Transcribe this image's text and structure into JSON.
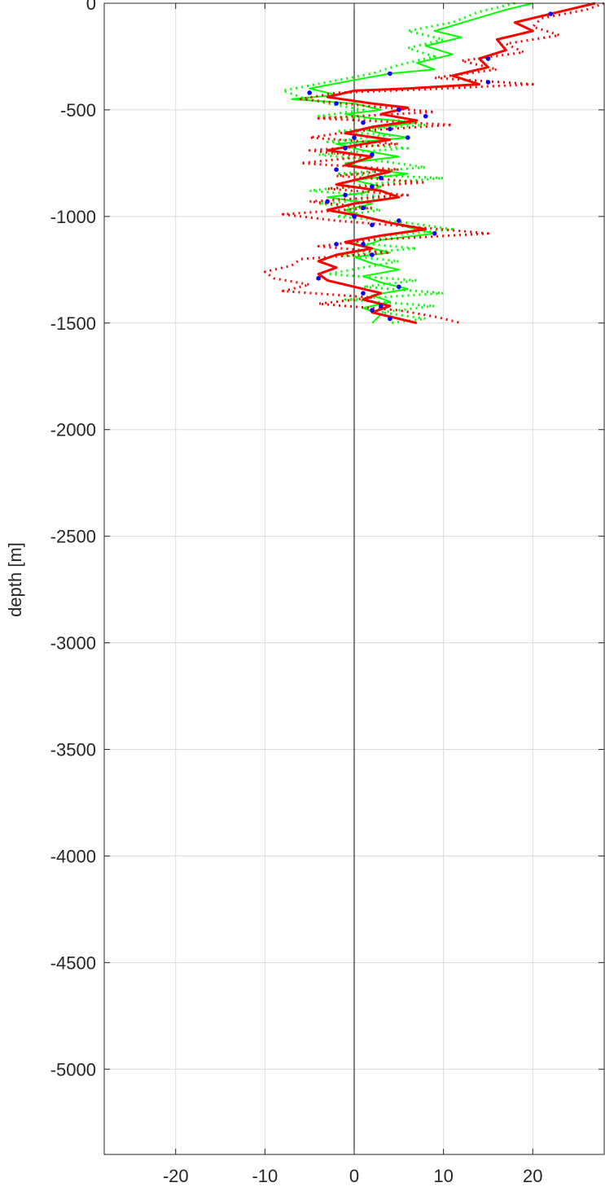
{
  "chart_data": {
    "type": "line",
    "title": "",
    "xlabel": "",
    "ylabel": "depth [m]",
    "xlim": [
      -28,
      28
    ],
    "ylim": [
      -5400,
      0
    ],
    "xticks": [
      -20,
      -10,
      0,
      10,
      20
    ],
    "yticks": [
      0,
      -500,
      -1000,
      -1500,
      -2000,
      -2500,
      -3000,
      -3500,
      -4000,
      -4500,
      -5000
    ],
    "xtick_labels": [
      "-20",
      "-10",
      "0",
      "10",
      "20"
    ],
    "ytick_labels": [
      "0",
      "-500",
      "-1000",
      "-1500",
      "-2000",
      "-2500",
      "-3000",
      "-3500",
      "-4000",
      "-4500",
      "-5000"
    ],
    "grid": true,
    "zero_line_x": 0,
    "legend": "none",
    "colors": {
      "red": "#ff0000",
      "green": "#00ff00",
      "blue": "#0000ff",
      "axis": "#262626",
      "grid": "#dcdcdc",
      "zero": "#000000"
    },
    "series": [
      {
        "color": "#00ff00",
        "style": "solid",
        "points": [
          [
            20,
            0
          ],
          [
            17,
            -30
          ],
          [
            13,
            -80
          ],
          [
            9,
            -130
          ],
          [
            12,
            -160
          ],
          [
            8,
            -200
          ],
          [
            11,
            -240
          ],
          [
            7,
            -280
          ],
          [
            9,
            -310
          ],
          [
            4,
            -330
          ],
          [
            0,
            -360
          ],
          [
            -5,
            -400
          ],
          [
            -2,
            -430
          ],
          [
            -7,
            -450
          ],
          [
            0,
            -470
          ],
          [
            3,
            -500
          ],
          [
            -1,
            -520
          ],
          [
            2,
            -540
          ],
          [
            7,
            -560
          ],
          [
            1,
            -590
          ],
          [
            3,
            -610
          ],
          [
            6,
            -630
          ],
          [
            -2,
            -660
          ],
          [
            1,
            -690
          ],
          [
            5,
            -720
          ],
          [
            -1,
            -750
          ],
          [
            2,
            -780
          ],
          [
            6,
            -800
          ],
          [
            0,
            -830
          ],
          [
            3,
            -860
          ],
          [
            1,
            -890
          ],
          [
            -3,
            -910
          ],
          [
            2,
            -940
          ],
          [
            -1,
            -970
          ],
          [
            1,
            -1000
          ],
          [
            4,
            -1030
          ],
          [
            7,
            -1060
          ],
          [
            9,
            -1080
          ],
          [
            3,
            -1110
          ],
          [
            1,
            -1140
          ],
          [
            4,
            -1170
          ],
          [
            0,
            -1190
          ],
          [
            2,
            -1220
          ],
          [
            5,
            -1250
          ],
          [
            1,
            -1280
          ],
          [
            3,
            -1310
          ],
          [
            6,
            -1340
          ],
          [
            2,
            -1370
          ],
          [
            4,
            -1400
          ],
          [
            1,
            -1430
          ],
          [
            3,
            -1460
          ],
          [
            2,
            -1500
          ]
        ]
      },
      {
        "color": "#00ff00",
        "style": "dotted",
        "points": [
          [
            18,
            0
          ],
          [
            14,
            -40
          ],
          [
            11,
            -90
          ],
          [
            6,
            -130
          ],
          [
            10,
            -170
          ],
          [
            6,
            -210
          ],
          [
            9,
            -250
          ],
          [
            5,
            -290
          ],
          [
            2,
            -330
          ],
          [
            -3,
            -370
          ],
          [
            -8,
            -410
          ],
          [
            -6,
            -440
          ],
          [
            -3,
            -470
          ],
          [
            1,
            -500
          ],
          [
            -4,
            -530
          ],
          [
            5,
            -550
          ],
          [
            8,
            -570
          ],
          [
            -2,
            -600
          ],
          [
            4,
            -620
          ],
          [
            -3,
            -650
          ],
          [
            6,
            -680
          ],
          [
            -4,
            -710
          ],
          [
            3,
            -740
          ],
          [
            8,
            -770
          ],
          [
            -2,
            -800
          ],
          [
            10,
            -820
          ],
          [
            1,
            -850
          ],
          [
            -5,
            -880
          ],
          [
            5,
            -910
          ],
          [
            -4,
            -940
          ],
          [
            3,
            -970
          ],
          [
            -2,
            -1000
          ],
          [
            6,
            -1030
          ],
          [
            11,
            -1060
          ],
          [
            4,
            -1090
          ],
          [
            -1,
            -1120
          ],
          [
            7,
            -1150
          ],
          [
            -2,
            -1180
          ],
          [
            5,
            -1210
          ],
          [
            1,
            -1240
          ],
          [
            -3,
            -1270
          ],
          [
            7,
            -1300
          ],
          [
            1,
            -1330
          ],
          [
            10,
            -1360
          ],
          [
            -1,
            -1390
          ],
          [
            9,
            -1420
          ],
          [
            3,
            -1450
          ],
          [
            8,
            -1480
          ],
          [
            4,
            -1500
          ]
        ]
      },
      {
        "color": "#ff0000",
        "style": "solid",
        "points": [
          [
            27,
            0
          ],
          [
            25,
            -20
          ],
          [
            22,
            -50
          ],
          [
            18,
            -90
          ],
          [
            20,
            -130
          ],
          [
            16,
            -170
          ],
          [
            17,
            -220
          ],
          [
            14,
            -260
          ],
          [
            15,
            -300
          ],
          [
            11,
            -340
          ],
          [
            14,
            -380
          ],
          [
            6,
            -400
          ],
          [
            0,
            -410
          ],
          [
            -3,
            -440
          ],
          [
            2,
            -470
          ],
          [
            6,
            -490
          ],
          [
            3,
            -520
          ],
          [
            7,
            -550
          ],
          [
            2,
            -580
          ],
          [
            -1,
            -610
          ],
          [
            4,
            -640
          ],
          [
            1,
            -660
          ],
          [
            -3,
            -690
          ],
          [
            2,
            -720
          ],
          [
            -1,
            -760
          ],
          [
            4,
            -790
          ],
          [
            1,
            -820
          ],
          [
            -2,
            -850
          ],
          [
            3,
            -880
          ],
          [
            5,
            -910
          ],
          [
            0,
            -940
          ],
          [
            -3,
            -970
          ],
          [
            1,
            -1000
          ],
          [
            4,
            -1030
          ],
          [
            8,
            -1060
          ],
          [
            3,
            -1090
          ],
          [
            -1,
            -1120
          ],
          [
            2,
            -1150
          ],
          [
            -2,
            -1180
          ],
          [
            -4,
            -1210
          ],
          [
            -2,
            -1240
          ],
          [
            -4,
            -1270
          ],
          [
            -3,
            -1300
          ],
          [
            0,
            -1330
          ],
          [
            3,
            -1360
          ],
          [
            1,
            -1390
          ],
          [
            4,
            -1420
          ],
          [
            2,
            -1450
          ],
          [
            5,
            -1480
          ],
          [
            7,
            -1500
          ]
        ]
      },
      {
        "color": "#ff0000",
        "style": "dotted",
        "points": [
          [
            28,
            0
          ],
          [
            26,
            -30
          ],
          [
            21,
            -70
          ],
          [
            20,
            -110
          ],
          [
            23,
            -150
          ],
          [
            17,
            -190
          ],
          [
            19,
            -230
          ],
          [
            12,
            -270
          ],
          [
            16,
            -310
          ],
          [
            9,
            -350
          ],
          [
            20,
            -380
          ],
          [
            10,
            -400
          ],
          [
            -2,
            -420
          ],
          [
            -6,
            -450
          ],
          [
            1,
            -480
          ],
          [
            9,
            -510
          ],
          [
            -4,
            -540
          ],
          [
            11,
            -570
          ],
          [
            0,
            -600
          ],
          [
            -5,
            -630
          ],
          [
            5,
            -660
          ],
          [
            -5,
            -690
          ],
          [
            1,
            -720
          ],
          [
            -6,
            -750
          ],
          [
            5,
            -780
          ],
          [
            -2,
            -810
          ],
          [
            8,
            -840
          ],
          [
            -3,
            -870
          ],
          [
            6,
            -900
          ],
          [
            -5,
            -930
          ],
          [
            2,
            -960
          ],
          [
            -8,
            -990
          ],
          [
            -2,
            -1020
          ],
          [
            7,
            -1050
          ],
          [
            15,
            -1080
          ],
          [
            2,
            -1110
          ],
          [
            -4,
            -1140
          ],
          [
            4,
            -1170
          ],
          [
            -6,
            -1200
          ],
          [
            -7,
            -1230
          ],
          [
            -10,
            -1260
          ],
          [
            -9,
            -1290
          ],
          [
            -5,
            -1320
          ],
          [
            -8,
            -1350
          ],
          [
            2,
            -1380
          ],
          [
            -4,
            -1410
          ],
          [
            5,
            -1440
          ],
          [
            9,
            -1470
          ],
          [
            12,
            -1500
          ]
        ]
      },
      {
        "color": "#0000ff",
        "style": "markers",
        "points": [
          [
            22,
            -50
          ],
          [
            15,
            -260
          ],
          [
            4,
            -330
          ],
          [
            -5,
            -420
          ],
          [
            -2,
            -470
          ],
          [
            15,
            -370
          ],
          [
            5,
            -500
          ],
          [
            8,
            -530
          ],
          [
            1,
            -560
          ],
          [
            4,
            -590
          ],
          [
            0,
            -630
          ],
          [
            6,
            -630
          ],
          [
            -1,
            -680
          ],
          [
            2,
            -710
          ],
          [
            -2,
            -780
          ],
          [
            3,
            -820
          ],
          [
            2,
            -860
          ],
          [
            -1,
            -900
          ],
          [
            -3,
            -930
          ],
          [
            1,
            -960
          ],
          [
            0,
            -1000
          ],
          [
            2,
            -1040
          ],
          [
            9,
            -1080
          ],
          [
            5,
            -1020
          ],
          [
            1,
            -1130
          ],
          [
            -2,
            -1130
          ],
          [
            2,
            -1180
          ],
          [
            -4,
            -1290
          ],
          [
            5,
            -1330
          ],
          [
            1,
            -1360
          ],
          [
            3,
            -1420
          ],
          [
            2,
            -1440
          ],
          [
            4,
            -1480
          ]
        ]
      }
    ]
  }
}
